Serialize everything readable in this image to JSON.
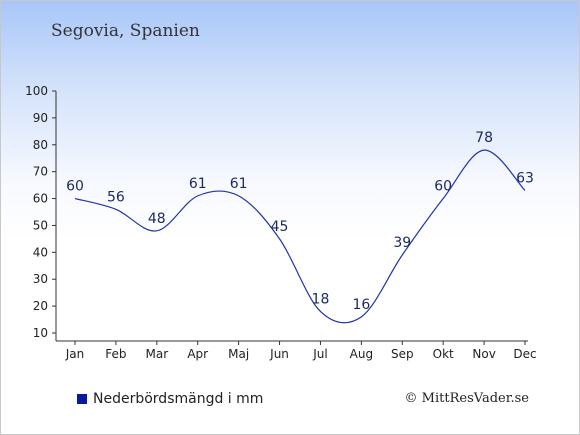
{
  "header": {
    "title": "Segovia, Spanien"
  },
  "legend": {
    "label": "Nederbördsmängd i mm"
  },
  "credit": {
    "text": "© MittResVader.se"
  },
  "colors": {
    "line": "#2233aa",
    "legend_swatch": "#0a1aa0",
    "axis": "#333333"
  },
  "chart_data": {
    "type": "line",
    "categories": [
      "Jan",
      "Feb",
      "Mar",
      "Apr",
      "Maj",
      "Jun",
      "Jul",
      "Aug",
      "Sep",
      "Okt",
      "Nov",
      "Dec"
    ],
    "series": [
      {
        "name": "Nederbördsmängd i mm",
        "values": [
          60,
          56,
          48,
          61,
          61,
          45,
          18,
          16,
          39,
          60,
          78,
          63
        ]
      }
    ],
    "ylim": [
      10,
      100
    ],
    "yticks": [
      10,
      20,
      30,
      40,
      50,
      60,
      70,
      80,
      90,
      100
    ],
    "grid": false,
    "legend_position": "bottom-left",
    "data_labels": true
  }
}
